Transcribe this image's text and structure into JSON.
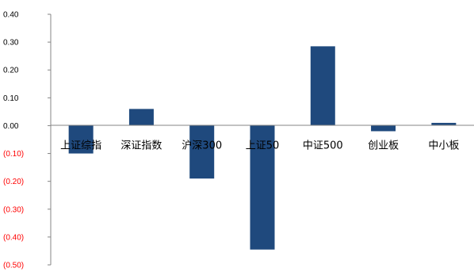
{
  "chart_data": {
    "type": "bar",
    "categories": [
      "上证综指",
      "深证指数",
      "沪深300",
      "上证50",
      "中证500",
      "创业板",
      "中小板"
    ],
    "values": [
      -0.1,
      0.06,
      -0.19,
      -0.445,
      0.285,
      -0.02,
      0.01
    ],
    "ylim": [
      -0.5,
      0.4
    ],
    "yticks": [
      0.4,
      0.3,
      0.2,
      0.1,
      0.0,
      -0.1,
      -0.2,
      -0.3,
      -0.4,
      -0.5
    ],
    "ytick_labels": [
      "0.40",
      "0.30",
      "0.20",
      "0.10",
      "0.00",
      "(0.10)",
      "(0.20)",
      "(0.30)",
      "(0.40)",
      "(0.50)"
    ],
    "title": "",
    "xlabel": "",
    "ylabel": "",
    "grid": false,
    "colors": {
      "bar": "#1f497d",
      "positive_tick": "#000000",
      "negative_tick": "#ff0000",
      "axis": "#868686"
    }
  }
}
